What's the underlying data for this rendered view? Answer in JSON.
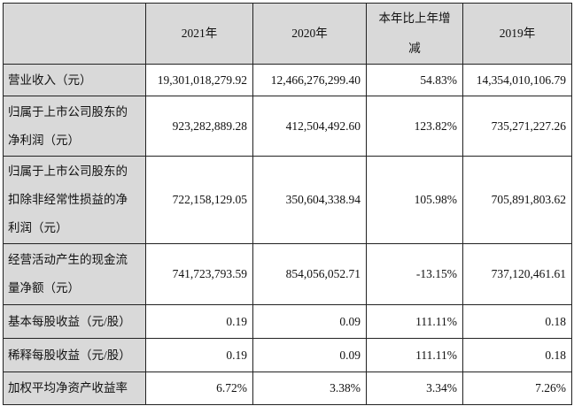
{
  "table": {
    "headers": [
      "",
      "2021年",
      "2020年",
      "本年比上年增减",
      "2019年"
    ],
    "header_change_lines": [
      "本年比上年增",
      "减"
    ],
    "rows": [
      {
        "label_lines": [
          "营业收入（元）"
        ],
        "values": [
          "19,301,018,279.92",
          "12,466,276,299.40",
          "54.83%",
          "14,354,010,106.79"
        ]
      },
      {
        "label_lines": [
          "归属于上市公司股东的",
          "净利润（元）"
        ],
        "values": [
          "923,282,889.28",
          "412,504,492.60",
          "123.82%",
          "735,271,227.26"
        ]
      },
      {
        "label_lines": [
          "归属于上市公司股东的",
          "扣除非经常性损益的净",
          "利润（元）"
        ],
        "values": [
          "722,158,129.05",
          "350,604,338.94",
          "105.98%",
          "705,891,803.62"
        ]
      },
      {
        "label_lines": [
          "经营活动产生的现金流",
          "量净额（元）"
        ],
        "values": [
          "741,723,793.59",
          "854,056,052.71",
          "-13.15%",
          "737,120,461.61"
        ]
      },
      {
        "label_lines": [
          "基本每股收益（元/股）"
        ],
        "values": [
          "0.19",
          "0.09",
          "111.11%",
          "0.18"
        ]
      },
      {
        "label_lines": [
          "稀释每股收益（元/股）"
        ],
        "values": [
          "0.19",
          "0.09",
          "111.11%",
          "0.18"
        ]
      },
      {
        "label_lines": [
          "加权平均净资产收益率"
        ],
        "values": [
          "6.72%",
          "3.38%",
          "3.34%",
          "7.26%"
        ]
      }
    ]
  }
}
